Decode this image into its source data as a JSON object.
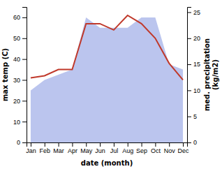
{
  "chart_data": {
    "type": "line",
    "xlabel": "date (month)",
    "ylabel": "max temp (C)",
    "y2label": "med. precipitation\n(kg/m2)",
    "categories": [
      "Jan",
      "Feb",
      "Mar",
      "Apr",
      "May",
      "Jun",
      "Jul",
      "Aug",
      "Sep",
      "Oct",
      "Nov",
      "Dec"
    ],
    "series": [
      {
        "type": "area",
        "axis": "y2",
        "color": "#bbc5ee",
        "values": [
          10,
          12,
          13,
          14,
          24,
          22,
          22,
          22,
          24,
          24,
          15,
          14
        ]
      },
      {
        "type": "line",
        "color": "#c0392b",
        "values": [
          31,
          32,
          35,
          35,
          57,
          57,
          54,
          61,
          57,
          50,
          38,
          30
        ]
      }
    ],
    "ylim": [
      0,
      65
    ],
    "yticks": [
      0,
      10,
      20,
      30,
      40,
      50,
      60
    ],
    "y2lim": [
      0,
      26
    ],
    "y2ticks": [
      0,
      5,
      10,
      15,
      20,
      25
    ],
    "grid": false
  }
}
